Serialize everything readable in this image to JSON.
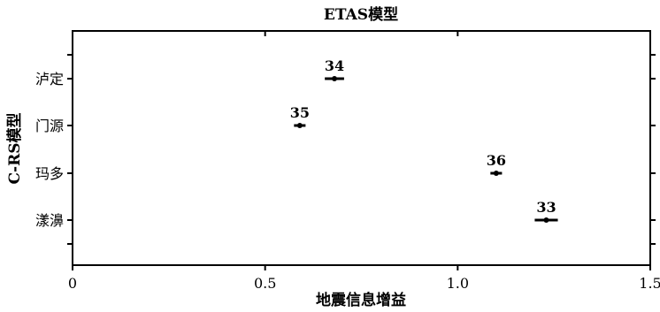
{
  "chart_data": {
    "type": "scatter",
    "title": "ETAS模型",
    "xlabel": "地震信息增益",
    "ylabel": "C-RS模型",
    "xlim": [
      0,
      1.5
    ],
    "xticks": [
      0,
      0.5,
      1.0,
      1.5
    ],
    "xtick_labels": [
      "0",
      "0.5",
      "1.0",
      "1.5"
    ],
    "categories": [
      "泸定",
      "门源",
      "玛多",
      "漾濞"
    ],
    "points": [
      {
        "category": "泸定",
        "x": 0.68,
        "err": 0.025,
        "label": "34"
      },
      {
        "category": "门源",
        "x": 0.59,
        "err": 0.015,
        "label": "35"
      },
      {
        "category": "玛多",
        "x": 1.1,
        "err": 0.015,
        "label": "36"
      },
      {
        "category": "漾濞",
        "x": 1.23,
        "err": 0.03,
        "label": "33"
      }
    ],
    "grid": false,
    "legend": "none"
  }
}
